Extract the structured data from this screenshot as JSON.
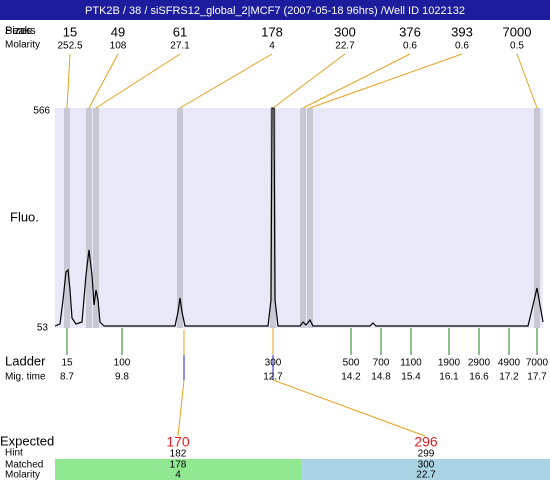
{
  "header": {
    "title": "PTK2B / 38 / siSFRS12_global_2|MCF7 (2007-05-18 96hrs) /Well ID 1022132"
  },
  "labels": {
    "peaks": "Peaks",
    "sizes": "Sizes",
    "molarity": "Molarity",
    "fluo": "Fluo.",
    "y_max": "566",
    "y_min": "53",
    "ladder": "Ladder",
    "mig_time": "Mig. time",
    "expected": "Expected",
    "hint": "Hint",
    "matched": "Matched",
    "matched_molarity": "Molarity"
  },
  "peaks": [
    {
      "size": "15",
      "molarity": "252.5"
    },
    {
      "size": "49",
      "molarity": "108"
    },
    {
      "size": "61",
      "molarity": "27.1"
    },
    {
      "size": "178",
      "molarity": "4"
    },
    {
      "size": "300",
      "molarity": "22.7"
    },
    {
      "size": "376",
      "molarity": "0.6"
    },
    {
      "size": "393",
      "molarity": "0.6"
    },
    {
      "size": "7000",
      "molarity": "0.5"
    }
  ],
  "ladder": [
    {
      "size": "15",
      "time": "8.7"
    },
    {
      "size": "100",
      "time": "9.8"
    },
    {
      "size": "300",
      "time": "12.7"
    },
    {
      "size": "500",
      "time": "14.2"
    },
    {
      "size": "700",
      "time": "14.8"
    },
    {
      "size": "1100",
      "time": "15.4"
    },
    {
      "size": "1900",
      "time": "16.1"
    },
    {
      "size": "2900",
      "time": "16.6"
    },
    {
      "size": "4900",
      "time": "17.2"
    },
    {
      "size": "7000",
      "time": "17.7"
    }
  ],
  "expected": [
    {
      "expected": "170",
      "hint": "182",
      "matched": "178",
      "molarity": "4"
    },
    {
      "expected": "296",
      "hint": "299",
      "matched": "300",
      "molarity": "22.7"
    }
  ]
}
